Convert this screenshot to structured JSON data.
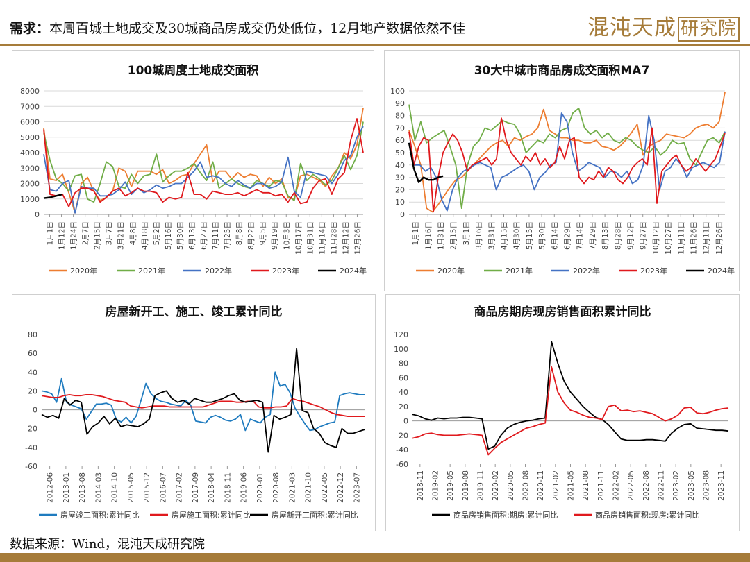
{
  "header": {
    "title_prefix": "需求",
    "title_text": "本周百城土地成交及30城商品房成交仍处低位，12月地产数据依然不佳",
    "logo_text": "混沌天成",
    "logo_box_text": "研究院"
  },
  "footer": {
    "source": "数据来源：Wind，混沌天成研究院"
  },
  "colors": {
    "accent": "#a67c3a"
  },
  "chart_data": [
    {
      "type": "line",
      "title": "100城周度土地成交面积",
      "ylim": [
        0,
        8000
      ],
      "yticks": [
        0,
        1000,
        2000,
        3000,
        4000,
        5000,
        6000,
        7000,
        8000
      ],
      "x_ticks": [
        "1月1日",
        "1月12日",
        "1月24日",
        "2月7日",
        "2月15日",
        "3月7日",
        "3月21日",
        "4月8日",
        "4月18日",
        "5月2日",
        "5月16日",
        "5月30日",
        "6月13日",
        "6月27日",
        "7月11日",
        "7月25日",
        "8月8日",
        "8月22日",
        "9月5日",
        "9月19日",
        "10月3日",
        "10月17日",
        "10月31日",
        "11月14日",
        "11月28日",
        "12月12日",
        "12月26日"
      ],
      "x_range": [
        1,
        52
      ],
      "grid": true,
      "legend_position": "bottom",
      "series": [
        {
          "name": "2020年",
          "color": "#ed7d31",
          "values": [
            5600,
            2300,
            2200,
            2600,
            1400,
            100,
            2000,
            2400,
            1500,
            900,
            1100,
            1500,
            3000,
            2800,
            1800,
            2800,
            2800,
            2800,
            2600,
            2900,
            2000,
            2200,
            2500,
            2600,
            3300,
            3900,
            4500,
            2100,
            2800,
            2800,
            2300,
            2700,
            2400,
            2600,
            2500,
            1800,
            2400,
            2000,
            2300,
            1100,
            1000,
            2500,
            2600,
            2400,
            2200,
            1800,
            2500,
            3000,
            4000,
            3600,
            4500,
            6900
          ]
        },
        {
          "name": "2021年",
          "color": "#70ad47",
          "values": [
            5300,
            3500,
            2300,
            2000,
            1500,
            2500,
            2600,
            1000,
            800,
            2000,
            3400,
            3100,
            1800,
            1700,
            2600,
            2000,
            2500,
            2600,
            3900,
            2100,
            2500,
            2800,
            2800,
            3000,
            3300,
            2700,
            2200,
            3400,
            1700,
            2000,
            2300,
            2000,
            1800,
            1700,
            2200,
            2000,
            1800,
            2200,
            2100,
            1200,
            900,
            3300,
            2200,
            2600,
            2300,
            1900,
            2200,
            3000,
            3800,
            2900,
            3800,
            6000
          ]
        },
        {
          "name": "2022年",
          "color": "#4472c4",
          "values": [
            3900,
            1600,
            1500,
            2000,
            2200,
            100,
            1800,
            1700,
            1700,
            1200,
            1200,
            1300,
            1600,
            2100,
            1300,
            1700,
            1400,
            1600,
            1900,
            1700,
            1800,
            2000,
            2000,
            2400,
            2800,
            3400,
            2400,
            2500,
            2400,
            2000,
            1800,
            2200,
            1900,
            1700,
            2000,
            2000,
            1700,
            1800,
            2100,
            3700,
            1500,
            1100,
            2800,
            2700,
            2600,
            2500,
            2000,
            2600,
            3500,
            3800,
            5000,
            5700
          ]
        },
        {
          "name": "2023年",
          "color": "#e0191d",
          "values": [
            5500,
            1300,
            1200,
            1300,
            500,
            1400,
            1700,
            1700,
            1500,
            800,
            1100,
            1500,
            1700,
            1200,
            1400,
            1700,
            1500,
            1500,
            1400,
            800,
            1100,
            1000,
            1100,
            2700,
            1300,
            1300,
            1000,
            1500,
            1400,
            1300,
            1300,
            1400,
            1200,
            1400,
            1600,
            1400,
            1400,
            1200,
            1300,
            800,
            1400,
            700,
            800,
            1700,
            2200,
            2300,
            1300,
            2300,
            2700,
            4800,
            6200,
            4000
          ]
        },
        {
          "name": "2024年",
          "color": "#000000",
          "values": [
            1050,
            1100,
            1200,
            1300
          ]
        }
      ]
    },
    {
      "type": "line",
      "title": "30大中城市商品房成交面积MA7",
      "ylim": [
        0,
        100
      ],
      "yticks": [
        0,
        10,
        20,
        30,
        40,
        50,
        60,
        70,
        80,
        90,
        100
      ],
      "x_ticks": [
        "1月1日",
        "1月16日",
        "1月31日",
        "2月15日",
        "3月1日",
        "3月16日",
        "3月31日",
        "4月15日",
        "4月30日",
        "5月15日",
        "5月30日",
        "6月14日",
        "6月29日",
        "7月14日",
        "7月29日",
        "8月13日",
        "8月28日",
        "9月12日",
        "9月27日",
        "10月12日",
        "10月27日",
        "11月11日",
        "11月26日",
        "12月11日",
        "12月26日"
      ],
      "x_range": [
        1,
        361
      ],
      "grid": true,
      "legend_position": "bottom",
      "series": [
        {
          "name": "2020年",
          "color": "#ed7d31",
          "values": [
            68,
            55,
            40,
            5,
            2,
            8,
            15,
            22,
            28,
            30,
            35,
            40,
            45,
            50,
            55,
            58,
            60,
            55,
            62,
            60,
            63,
            65,
            70,
            85,
            68,
            65,
            62,
            62,
            60,
            60,
            58,
            58,
            60,
            55,
            54,
            52,
            55,
            60,
            66,
            73,
            48,
            55,
            58,
            60,
            65,
            64,
            63,
            62,
            65,
            70,
            72,
            73,
            70,
            75,
            99
          ]
        },
        {
          "name": "2021年",
          "color": "#70ad47",
          "values": [
            89,
            60,
            75,
            58,
            62,
            65,
            68,
            55,
            40,
            5,
            40,
            55,
            60,
            70,
            68,
            72,
            76,
            74,
            73,
            65,
            50,
            55,
            60,
            58,
            65,
            62,
            68,
            70,
            82,
            86,
            70,
            65,
            68,
            62,
            66,
            60,
            58,
            62,
            60,
            55,
            52,
            50,
            55,
            48,
            52,
            60,
            57,
            58,
            45,
            40,
            50,
            60,
            62,
            58,
            67
          ]
        },
        {
          "name": "2022年",
          "color": "#4472c4",
          "values": [
            58,
            40,
            40,
            35,
            38,
            30,
            12,
            3,
            20,
            30,
            35,
            37,
            40,
            42,
            40,
            38,
            20,
            30,
            32,
            35,
            38,
            40,
            35,
            20,
            30,
            34,
            40,
            42,
            82,
            75,
            50,
            35,
            38,
            42,
            40,
            38,
            30,
            35,
            34,
            30,
            35,
            25,
            28,
            40,
            80,
            60,
            20,
            35,
            38,
            45,
            40,
            30,
            38,
            40,
            42,
            40,
            38,
            42,
            67
          ]
        },
        {
          "name": "2023年",
          "color": "#e0191d",
          "values": [
            67,
            40,
            55,
            62,
            60,
            2,
            30,
            50,
            58,
            65,
            60,
            50,
            35,
            40,
            42,
            44,
            46,
            40,
            45,
            78,
            60,
            50,
            45,
            40,
            47,
            43,
            50,
            40,
            45,
            38,
            42,
            55,
            45,
            60,
            62,
            30,
            25,
            30,
            28,
            35,
            30,
            38,
            35,
            28,
            25,
            30,
            38,
            42,
            45,
            40,
            70,
            9,
            35,
            40,
            45,
            48,
            40,
            35,
            38,
            45,
            40,
            35,
            40,
            45,
            55,
            66
          ]
        },
        {
          "name": "2024年",
          "color": "#000000",
          "values": [
            58,
            37,
            26,
            30,
            28,
            28,
            30,
            31
          ]
        }
      ]
    },
    {
      "type": "line",
      "title": "房屋新开工、施工、竣工累计同比",
      "ylim": [
        -60,
        80
      ],
      "yticks": [
        -60,
        -40,
        -20,
        0,
        20,
        40,
        60,
        80
      ],
      "x_ticks": [
        "2012-06",
        "2013-01",
        "2013-08",
        "2014-03",
        "2014-10",
        "2015-05",
        "2015-12",
        "2016-07",
        "2017-02",
        "2017-09",
        "2018-04",
        "2018-11",
        "2019-06",
        "2020-01",
        "2020-08",
        "2021-03",
        "2021-10",
        "2022-05",
        "2022-12",
        "2023-07"
      ],
      "x_range": [
        "2012-06",
        "2023-12"
      ],
      "grid": false,
      "legend_position": "bottom",
      "series": [
        {
          "name": "房屋竣工面积:累计同比",
          "color": "#1f7bbf",
          "values": [
            20,
            19,
            17,
            8,
            33,
            8,
            5,
            3,
            1,
            -10,
            -2,
            6,
            6,
            7,
            5,
            -10,
            -13,
            -8,
            -14,
            -7,
            10,
            28,
            17,
            12,
            9,
            8,
            6,
            5,
            4,
            10,
            5,
            -12,
            -13,
            -14,
            -8,
            -6,
            -8,
            -11,
            -12,
            -10,
            -5,
            -22,
            -10,
            -12,
            -14,
            -8,
            -5,
            40,
            25,
            27,
            18,
            2,
            -7,
            -15,
            -22,
            -21,
            -18,
            -16,
            -14,
            -13,
            15,
            17,
            18,
            17,
            16,
            16
          ]
        },
        {
          "name": "房屋施工面积:累计同比",
          "color": "#e0191d",
          "values": [
            15,
            14,
            13,
            13,
            15,
            16,
            15,
            15,
            16,
            16,
            15,
            14,
            12,
            10,
            9,
            8,
            4,
            3,
            2,
            3,
            4,
            4,
            4,
            3,
            3,
            3,
            3,
            3,
            3,
            3,
            5,
            7,
            9,
            9,
            9,
            8,
            8,
            9,
            9,
            3,
            2,
            2,
            3,
            3,
            4,
            12,
            10,
            9,
            7,
            5,
            3,
            0,
            -3,
            -5,
            -6,
            -7,
            -7,
            -7,
            -7
          ]
        },
        {
          "name": "房屋新开工面积:累计同比",
          "color": "#000000",
          "values": [
            -5,
            -8,
            -6,
            -9,
            12,
            5,
            10,
            8,
            -26,
            -18,
            -14,
            -7,
            -15,
            -9,
            -18,
            -16,
            -17,
            -18,
            -15,
            -10,
            15,
            18,
            20,
            12,
            8,
            10,
            6,
            12,
            10,
            8,
            8,
            10,
            12,
            15,
            17,
            10,
            8,
            9,
            10,
            8,
            -45,
            -6,
            -10,
            -8,
            -5,
            65,
            -1,
            -3,
            -20,
            -25,
            -35,
            -38,
            -40,
            -20,
            -25,
            -25,
            -23,
            -21
          ]
        }
      ]
    },
    {
      "type": "line",
      "title": "商品房期房现房销售面积累计同比",
      "ylim": [
        -60,
        120
      ],
      "yticks": [
        -60,
        -40,
        -20,
        0,
        20,
        40,
        60,
        80,
        100,
        120
      ],
      "x_ticks": [
        "2018-11",
        "2019-02",
        "2019-05",
        "2019-08",
        "2019-11",
        "2020-02",
        "2020-05",
        "2020-08",
        "2020-11",
        "2021-02",
        "2021-05",
        "2021-08",
        "2021-11",
        "2022-02",
        "2022-05",
        "2022-08",
        "2022-11",
        "2023-02",
        "2023-05",
        "2023-08",
        "2023-11"
      ],
      "x_range": [
        "2018-11",
        "2023-12"
      ],
      "grid": false,
      "legend_position": "bottom",
      "series": [
        {
          "name": "商品房销售面积:期房:累计同比",
          "color": "#000000",
          "values": [
            9,
            7,
            3,
            1,
            4,
            3,
            4,
            4,
            5,
            5,
            4,
            3,
            -39,
            -35,
            -20,
            -10,
            -5,
            -2,
            0,
            1,
            3,
            4,
            110,
            80,
            55,
            40,
            30,
            20,
            12,
            5,
            2,
            -5,
            -15,
            -25,
            -27,
            -27,
            -27,
            -26,
            -26,
            -27,
            -28,
            -17,
            -10,
            -5,
            -4,
            -10,
            -11,
            -12,
            -13,
            -13,
            -14
          ]
        },
        {
          "name": "商品房销售面积:现房:累计同比",
          "color": "#e0191d",
          "values": [
            -24,
            -22,
            -18,
            -17,
            -19,
            -20,
            -20,
            -20,
            -19,
            -18,
            -19,
            -20,
            -47,
            -38,
            -30,
            -25,
            -20,
            -15,
            -10,
            -8,
            -5,
            -3,
            75,
            40,
            25,
            15,
            12,
            8,
            5,
            4,
            2,
            20,
            22,
            14,
            15,
            13,
            14,
            12,
            10,
            5,
            0,
            3,
            8,
            18,
            19,
            11,
            10,
            12,
            15,
            17,
            18
          ]
        }
      ]
    }
  ]
}
